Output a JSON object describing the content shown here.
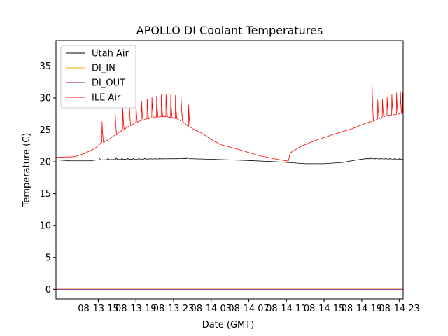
{
  "chart_data": {
    "type": "line",
    "title": "APOLLO DI Coolant Temperatures",
    "xlabel": "Date (GMT)",
    "ylabel": "Temperature (C)",
    "xlim_hours": [
      10.5,
      47.4
    ],
    "ylim": [
      -1.5,
      39
    ],
    "yticks": [
      0,
      5,
      10,
      15,
      20,
      25,
      30,
      35
    ],
    "xticks": [
      {
        "hour": 15,
        "label": "08-13 15"
      },
      {
        "hour": 19,
        "label": "08-13 19"
      },
      {
        "hour": 23,
        "label": "08-13 23"
      },
      {
        "hour": 27,
        "label": "08-14 03"
      },
      {
        "hour": 31,
        "label": "08-14 07"
      },
      {
        "hour": 35,
        "label": "08-14 11"
      },
      {
        "hour": 39,
        "label": "08-14 15"
      },
      {
        "hour": 43,
        "label": "08-14 19"
      },
      {
        "hour": 47,
        "label": "08-14 23"
      }
    ],
    "legend": {
      "placement": "top-left"
    },
    "colors": {
      "Utah Air": "#000000",
      "DI_IN": "#e0b000",
      "DI_OUT": "#800080",
      "ILE Air": "#ff0000"
    },
    "series": [
      {
        "name": "Utah Air",
        "color": "#000000",
        "points": [
          [
            10.5,
            20.3
          ],
          [
            12,
            20.15
          ],
          [
            14,
            20.15
          ],
          [
            15,
            20.3
          ],
          [
            18,
            20.4
          ],
          [
            21,
            20.45
          ],
          [
            24.3,
            20.5
          ],
          [
            27,
            20.4
          ],
          [
            31,
            20.2
          ],
          [
            34,
            20.0
          ],
          [
            35,
            19.9
          ],
          [
            37,
            19.7
          ],
          [
            39,
            19.7
          ],
          [
            41,
            19.9
          ],
          [
            42.5,
            20.3
          ],
          [
            43.5,
            20.5
          ],
          [
            47.4,
            20.4
          ]
        ],
        "spikes": [
          {
            "hour": 15.1,
            "peak": 20.7
          },
          {
            "hour": 16.0,
            "peak": 20.6
          },
          {
            "hour": 16.9,
            "peak": 20.7
          },
          {
            "hour": 17.5,
            "peak": 20.6
          },
          {
            "hour": 18.1,
            "peak": 20.6
          },
          {
            "hour": 18.7,
            "peak": 20.6
          },
          {
            "hour": 19.3,
            "peak": 20.6
          },
          {
            "hour": 19.9,
            "peak": 20.6
          },
          {
            "hour": 20.5,
            "peak": 20.6
          },
          {
            "hour": 21.0,
            "peak": 20.6
          },
          {
            "hour": 21.5,
            "peak": 20.6
          },
          {
            "hour": 22.0,
            "peak": 20.6
          },
          {
            "hour": 22.5,
            "peak": 20.6
          },
          {
            "hour": 23.0,
            "peak": 20.6
          },
          {
            "hour": 23.6,
            "peak": 20.6
          },
          {
            "hour": 24.4,
            "peak": 20.7
          },
          {
            "hour": 44.0,
            "peak": 20.7
          },
          {
            "hour": 44.5,
            "peak": 20.6
          },
          {
            "hour": 45.0,
            "peak": 20.6
          },
          {
            "hour": 45.5,
            "peak": 20.6
          },
          {
            "hour": 46.0,
            "peak": 20.6
          },
          {
            "hour": 46.5,
            "peak": 20.6
          },
          {
            "hour": 47.0,
            "peak": 20.6
          }
        ]
      },
      {
        "name": "DI_IN",
        "color": "#e0b000",
        "points": [
          [
            10.5,
            0.05
          ],
          [
            47.4,
            0.05
          ]
        ]
      },
      {
        "name": "DI_OUT",
        "color": "#800080",
        "points": [
          [
            10.5,
            0.0
          ],
          [
            47.4,
            0.0
          ]
        ]
      },
      {
        "name": "ILE Air",
        "color": "#ff0000",
        "points": [
          [
            10.5,
            20.7
          ],
          [
            12.5,
            20.8
          ],
          [
            13.5,
            21.3
          ],
          [
            14.5,
            22.0
          ],
          [
            15.0,
            22.5
          ],
          [
            15.3,
            23.0
          ],
          [
            16.0,
            23.4
          ],
          [
            17.0,
            24.4
          ],
          [
            18.0,
            25.4
          ],
          [
            19.0,
            26.2
          ],
          [
            20.0,
            26.7
          ],
          [
            21.0,
            27.0
          ],
          [
            22.0,
            27.1
          ],
          [
            23.0,
            26.9
          ],
          [
            24.0,
            26.3
          ],
          [
            24.5,
            25.6
          ],
          [
            25.0,
            25.2
          ],
          [
            26.0,
            24.5
          ],
          [
            27.0,
            23.5
          ],
          [
            28.0,
            22.7
          ],
          [
            30.0,
            21.9
          ],
          [
            32.0,
            21.0
          ],
          [
            34.0,
            20.4
          ],
          [
            35.2,
            20.1
          ],
          [
            35.4,
            21.4
          ],
          [
            36.5,
            22.4
          ],
          [
            38.0,
            23.3
          ],
          [
            40.0,
            24.3
          ],
          [
            42.0,
            25.2
          ],
          [
            43.5,
            26.1
          ],
          [
            44.0,
            26.3
          ],
          [
            45.5,
            27.2
          ],
          [
            47.4,
            27.6
          ]
        ],
        "spikes": [
          {
            "hour": 15.4,
            "peak": 26.3
          },
          {
            "hour": 16.8,
            "peak": 27.6
          },
          {
            "hour": 17.6,
            "peak": 28.5
          },
          {
            "hour": 18.3,
            "peak": 28.9
          },
          {
            "hour": 19.0,
            "peak": 29.2
          },
          {
            "hour": 19.6,
            "peak": 29.5
          },
          {
            "hour": 20.2,
            "peak": 29.8
          },
          {
            "hour": 20.7,
            "peak": 30.1
          },
          {
            "hour": 21.2,
            "peak": 30.3
          },
          {
            "hour": 21.7,
            "peak": 30.5
          },
          {
            "hour": 22.2,
            "peak": 30.6
          },
          {
            "hour": 22.7,
            "peak": 30.5
          },
          {
            "hour": 23.2,
            "peak": 30.4
          },
          {
            "hour": 23.8,
            "peak": 30.1
          },
          {
            "hour": 24.6,
            "peak": 28.9
          },
          {
            "hour": 44.1,
            "peak": 32.2
          },
          {
            "hour": 44.7,
            "peak": 29.7
          },
          {
            "hour": 45.2,
            "peak": 29.8
          },
          {
            "hour": 45.7,
            "peak": 30.1
          },
          {
            "hour": 46.2,
            "peak": 30.5
          },
          {
            "hour": 46.7,
            "peak": 30.8
          },
          {
            "hour": 47.1,
            "peak": 31.1
          },
          {
            "hour": 47.35,
            "peak": 30.8
          }
        ]
      }
    ]
  }
}
